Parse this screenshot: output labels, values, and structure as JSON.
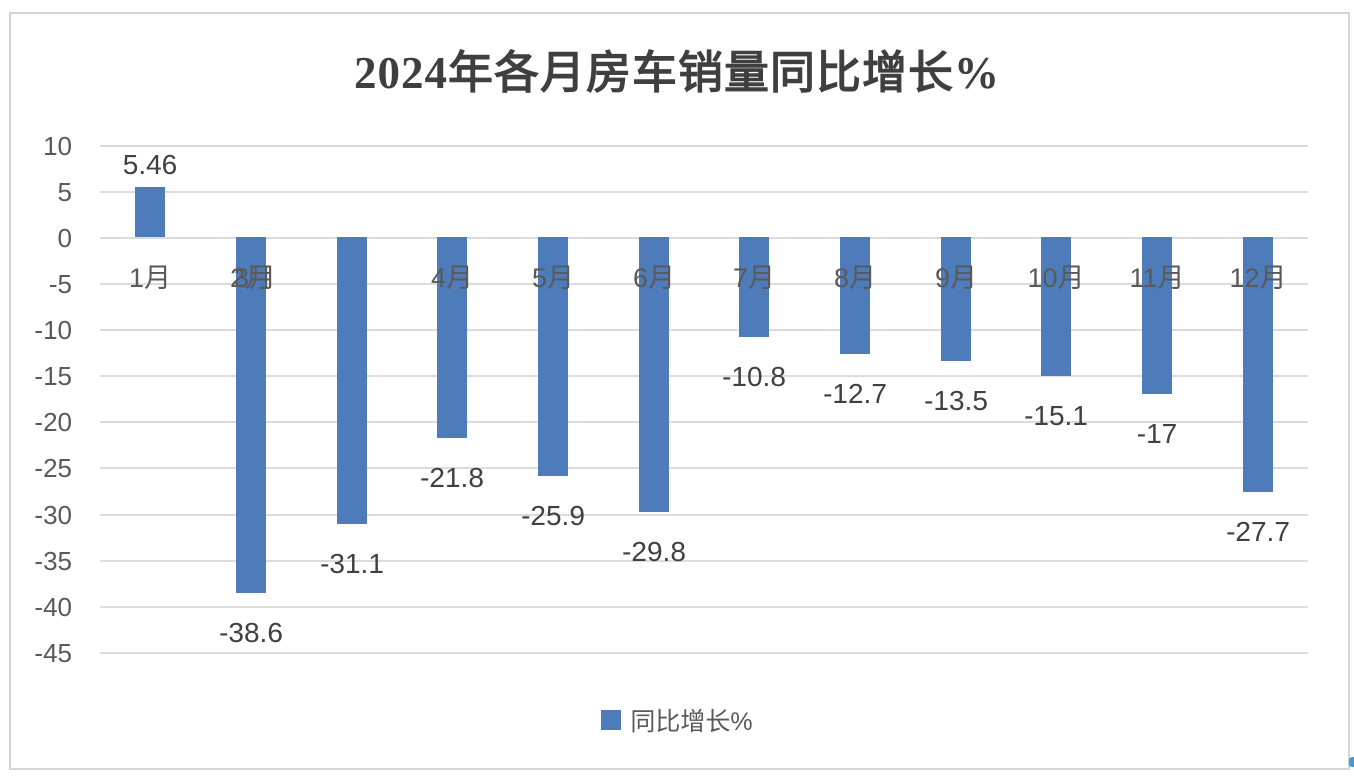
{
  "window": {
    "background": "#ffffff",
    "border_color": "#d5d5d5"
  },
  "colors": {
    "bar": "#4e7cba",
    "title_text": "#3f3f3f",
    "axis_text": "#595959",
    "value_label_text": "#404040",
    "gridline": "#dcdcdc",
    "legend_swatch": "#4e7cba",
    "edge_mark": "#4a96d2"
  },
  "chart_data": {
    "type": "bar",
    "title": "2024年各月房车销量同比增长%",
    "series_name": "同比增长%",
    "categories": [
      "1月",
      "2月",
      "3月",
      "4月",
      "5月",
      "6月",
      "7月",
      "8月",
      "9月",
      "10月",
      "11月",
      "12月"
    ],
    "values": [
      5.46,
      -38.6,
      -31.1,
      -21.8,
      -25.9,
      -29.8,
      -10.8,
      -12.7,
      -13.5,
      -15.1,
      -17,
      -27.7
    ],
    "value_labels": [
      "5.46",
      "-38.6",
      "-31.1",
      "-21.8",
      "-25.9",
      "-29.8",
      "-10.8",
      "-12.7",
      "-13.5",
      "-15.1",
      "-17",
      "-27.7"
    ],
    "ylim": [
      -45,
      10
    ],
    "yticks": [
      10,
      5,
      0,
      -5,
      -10,
      -15,
      -20,
      -25,
      -30,
      -35,
      -40,
      -45
    ],
    "ytick_labels": [
      "10",
      "5",
      "0",
      "-5",
      "-10",
      "-15",
      "-20",
      "-25",
      "-30",
      "-35",
      "-40",
      "-45"
    ],
    "grid": true,
    "legend": {
      "position": "bottom",
      "label": "同比增长%"
    },
    "category_label_overrides": {
      "2": {
        "align_to_index": 1,
        "dx": 4
      }
    },
    "category_label_note": "3月 category label is drawn overlapping the 2月 label"
  }
}
